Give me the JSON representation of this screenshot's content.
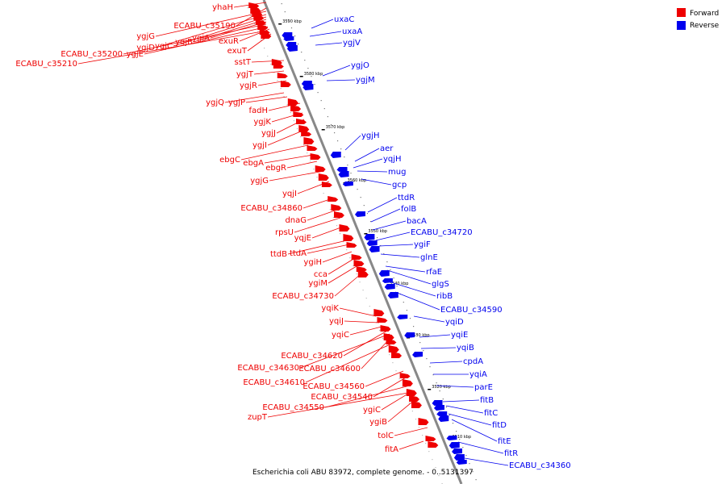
{
  "caption": "Escherichia coli ABU 83972, complete genome. - 0..5131397",
  "colors": {
    "forward": "#ee0000",
    "reverse": "#0000ee",
    "backbone": "#888888"
  },
  "legend": [
    {
      "label": "Forward",
      "color": "#ee0000"
    },
    {
      "label": "Reverse",
      "color": "#0000ee"
    }
  ],
  "ticks": [
    "3590 kbp",
    "3580 kbp",
    "3570 kbp",
    "3560 kbp",
    "3550 kbp",
    "3540 kbp",
    "3530 kbp",
    "3520 kbp",
    "3510 kbp"
  ],
  "forward_labels": [
    "yhaH",
    "ECABU_c35190",
    "ygjG",
    "ygjD",
    "ygjC",
    "ygjB",
    "ygjA",
    "exuR",
    "ECABU_c35200",
    "ygjE",
    "exuT",
    "ECABU_c35210",
    "sstT",
    "ygjT",
    "ygjR",
    "ygjQ",
    "ygjP",
    "fadH",
    "ygjK",
    "ygjJ",
    "ygjI",
    "ebgC",
    "ebgA",
    "ebgR",
    "ygjG",
    "yqjI",
    "ECABU_c34860",
    "dnaG",
    "rpsU",
    "yqjE",
    "ttdB",
    "ttdA",
    "ygiH",
    "cca",
    "ygiM",
    "ECABU_c34730",
    "yqiK",
    "yqiJ",
    "yqiC",
    "ECABU_c34620",
    "ECABU_c34630",
    "ECABU_c34600",
    "ECABU_c34610",
    "ECABU_c34560",
    "ECABU_c34540",
    "ECABU_c34550",
    "ygiC",
    "zupT",
    "ygiB",
    "tolC",
    "fitA"
  ],
  "reverse_labels": [
    "uxaC",
    "uxaA",
    "ygjV",
    "ygjO",
    "ygjM",
    "ygjH",
    "aer",
    "yqjH",
    "mug",
    "gcp",
    "ttdR",
    "folB",
    "bacA",
    "ECABU_c34720",
    "ygiF",
    "glnE",
    "rfaE",
    "glgS",
    "ribB",
    "ECABU_c34590",
    "yqiD",
    "yqiE",
    "yqiB",
    "cpdA",
    "yqiA",
    "parE",
    "fitB",
    "fitC",
    "fitD",
    "fitE",
    "fitR",
    "ECABU_c34360"
  ]
}
